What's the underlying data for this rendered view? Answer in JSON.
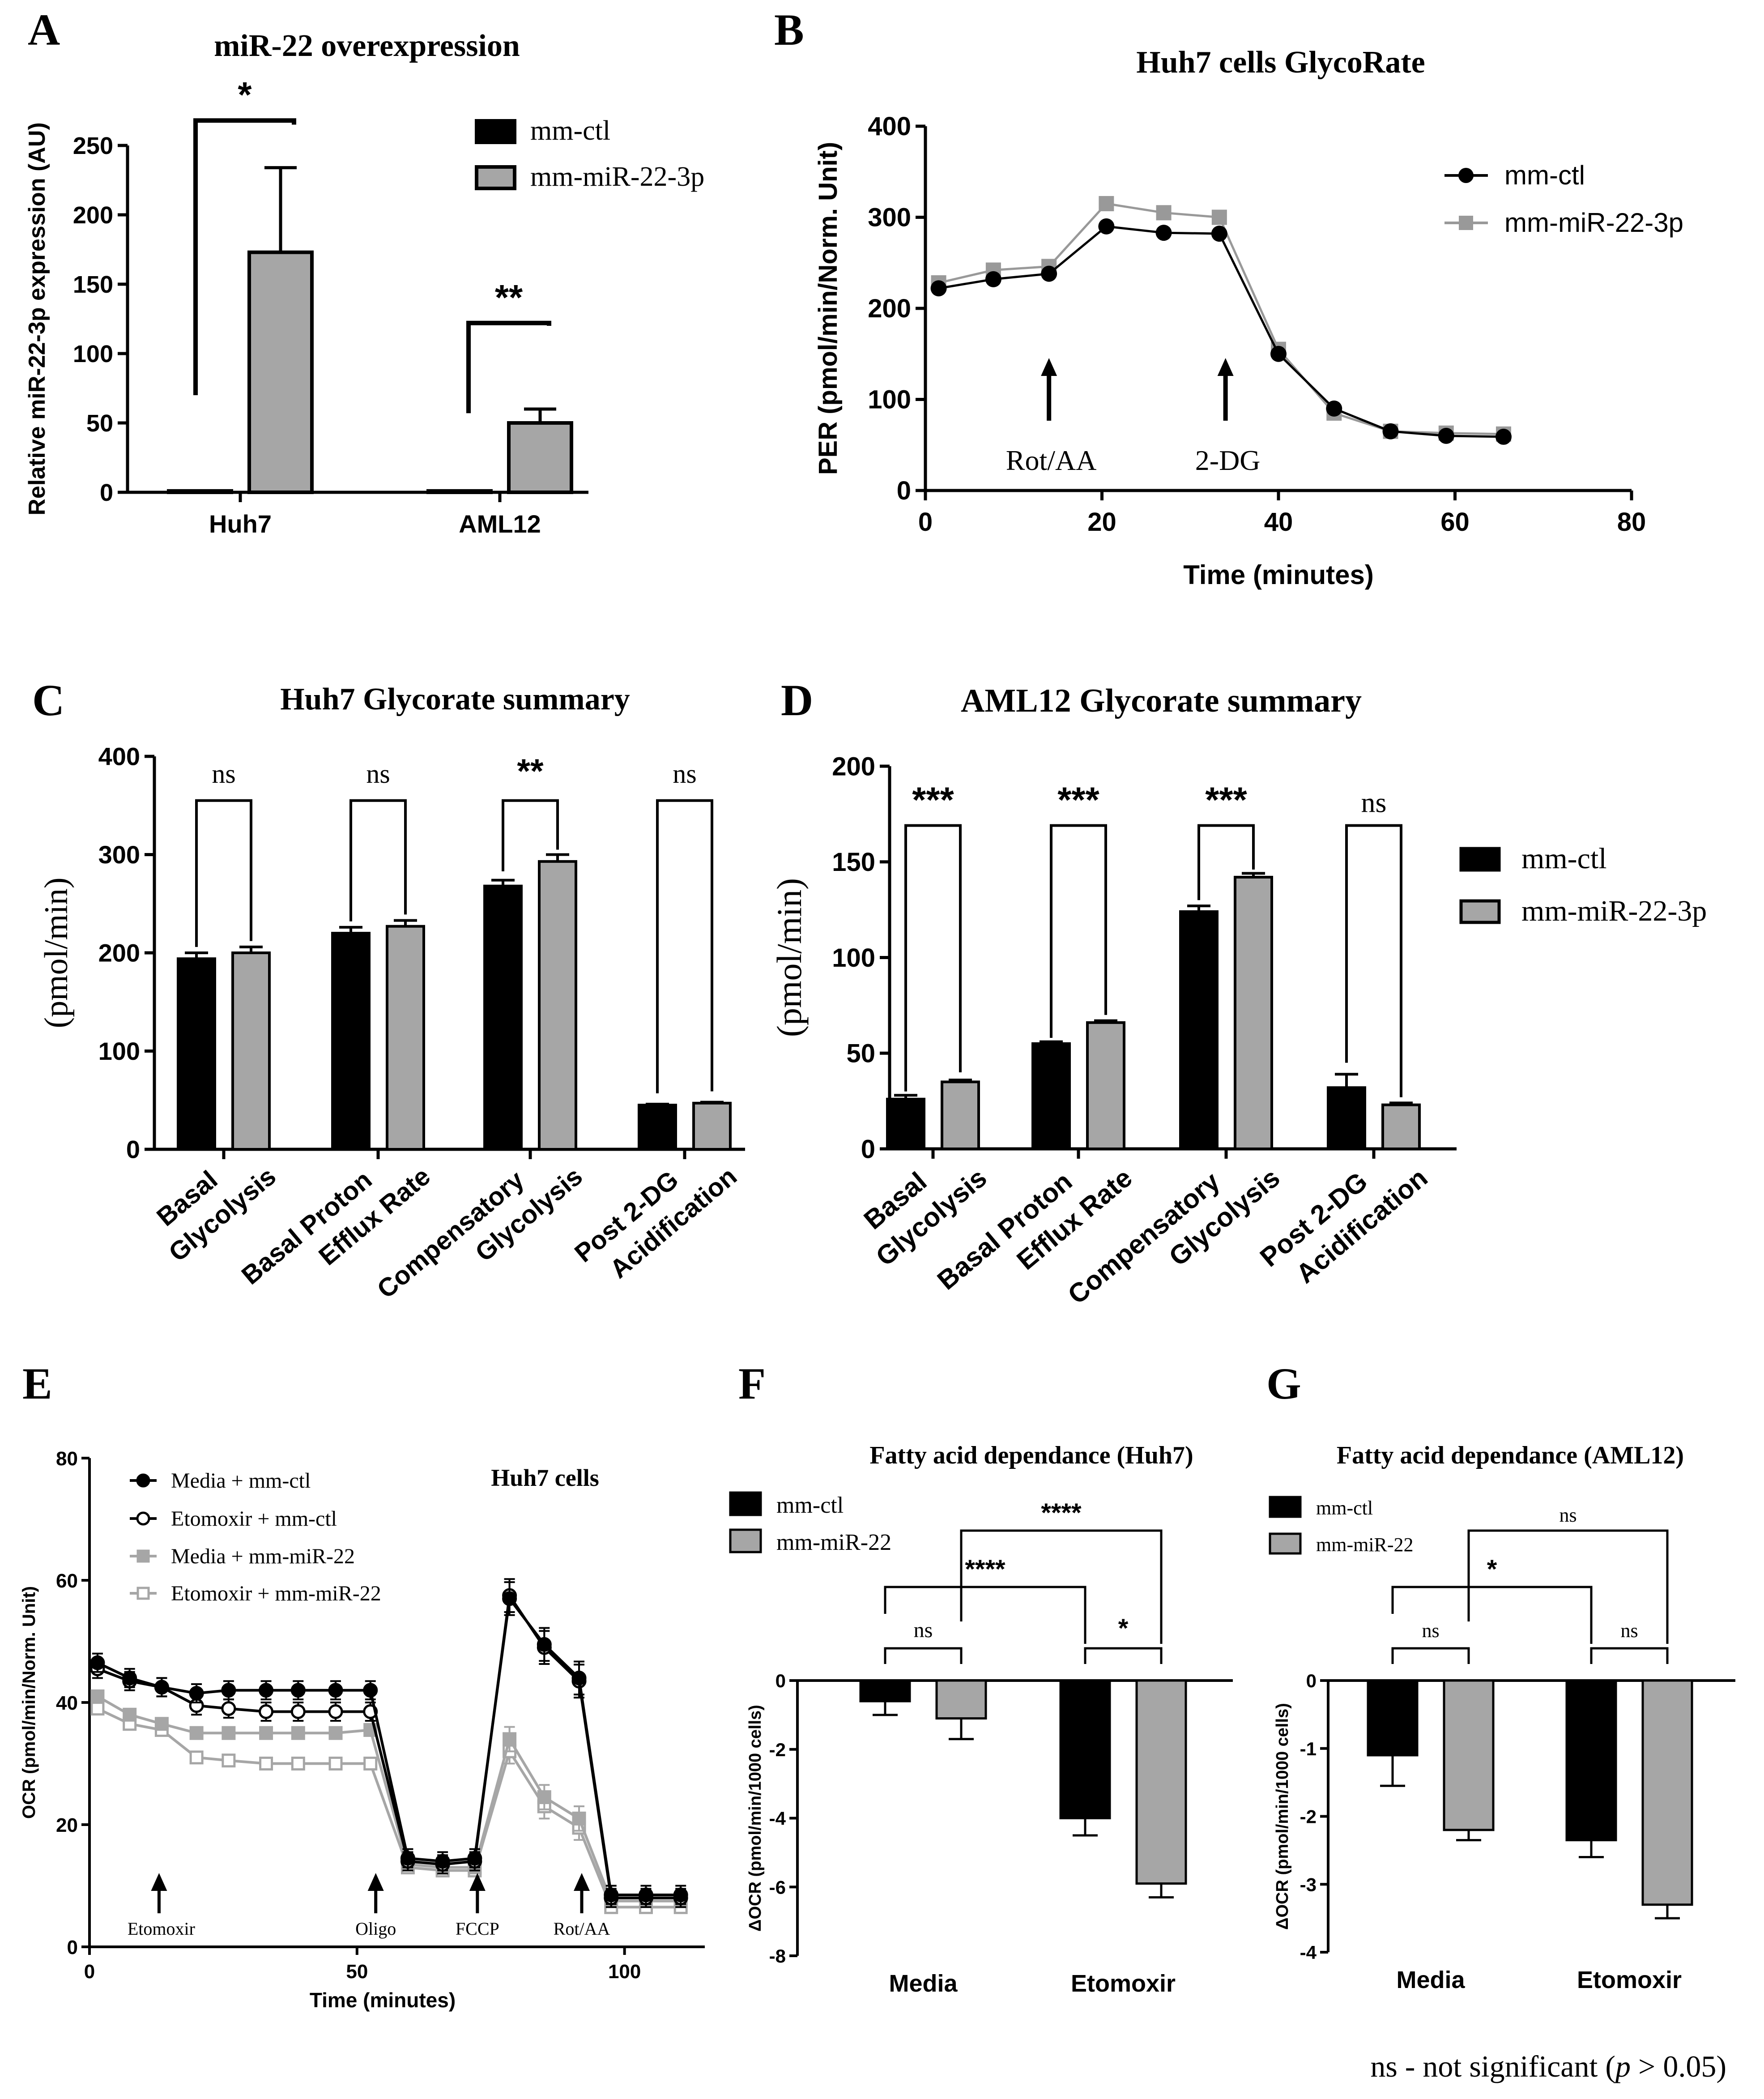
{
  "colors": {
    "ctl": "#000000",
    "mir": "#a6a6a6",
    "mir_line": "#999999",
    "dark": "#000000"
  },
  "chart_data": [
    {
      "panel": "A",
      "type": "bar",
      "title": "miR-22 overexpression",
      "ylabel": "Relative miR-22-3p expression (AU)",
      "categories": [
        "Huh7",
        "AML12"
      ],
      "ylim": [
        0,
        250
      ],
      "yticks": [
        0,
        50,
        100,
        150,
        200,
        250
      ],
      "series": [
        {
          "name": "mm-ctl",
          "values": [
            1,
            1
          ],
          "err": [
            0,
            0
          ]
        },
        {
          "name": "mm-miR-22-3p",
          "values": [
            173,
            50
          ],
          "err": [
            61,
            10
          ]
        }
      ],
      "significance": [
        "*",
        "**"
      ]
    },
    {
      "panel": "B",
      "type": "line",
      "title": "Huh7 cells GlycoRate",
      "xlabel": "Time (minutes)",
      "ylabel": "PER (pmol/min/Norm. Unit)",
      "xlim": [
        0,
        80
      ],
      "ylim": [
        0,
        400
      ],
      "xticks": [
        0,
        20,
        40,
        60,
        80
      ],
      "yticks": [
        0,
        100,
        200,
        300,
        400
      ],
      "x": [
        1.5,
        7.7,
        14,
        20.5,
        27,
        33.3,
        40,
        46.3,
        52.7,
        59,
        65.5
      ],
      "series": [
        {
          "name": "mm-ctl",
          "values": [
            222,
            232,
            238,
            290,
            283,
            282,
            150,
            90,
            65,
            60,
            59
          ]
        },
        {
          "name": "mm-miR-22-3p",
          "values": [
            228,
            242,
            246,
            315,
            305,
            300,
            155,
            85,
            65,
            63,
            62
          ]
        }
      ],
      "annotations": [
        {
          "label": "Rot/AA",
          "x": 14
        },
        {
          "label": "2-DG",
          "x": 34
        }
      ]
    },
    {
      "panel": "C",
      "type": "bar",
      "title": "Huh7 Glycorate summary",
      "ylabel": "(pmol/min)",
      "categories": [
        "Basal Glycolysis",
        "Basal Proton Efflux Rate",
        "Compensatory Glycolysis",
        "Post 2-DG Acidification"
      ],
      "category_lines": [
        [
          "Basal",
          "Glycolysis"
        ],
        [
          "Basal Proton",
          "Efflux Rate"
        ],
        [
          "Compensatory",
          "Glycolysis"
        ],
        [
          "Post 2-DG",
          "Acidification"
        ]
      ],
      "ylim": [
        0,
        400
      ],
      "yticks": [
        0,
        100,
        200,
        300,
        400
      ],
      "series": [
        {
          "name": "mm-ctl",
          "values": [
            194,
            220,
            268,
            45
          ],
          "err": [
            6,
            6,
            6,
            1
          ]
        },
        {
          "name": "mm-miR-22-3p",
          "values": [
            200,
            227,
            293,
            47
          ],
          "err": [
            6,
            6,
            7,
            1
          ]
        }
      ],
      "significance": [
        "ns",
        "ns",
        "**",
        "ns"
      ]
    },
    {
      "panel": "D",
      "type": "bar",
      "title": "AML12 Glycorate summary",
      "ylabel": "(pmol/min)",
      "categories": [
        "Basal Glycolysis",
        "Basal Proton Efflux Rate",
        "Compensatory Glycolysis",
        "Post 2-DG Acidification"
      ],
      "category_lines": [
        [
          "Basal",
          "Glycolysis"
        ],
        [
          "Basal Proton",
          "Efflux Rate"
        ],
        [
          "Compensatory",
          "Glycolysis"
        ],
        [
          "Post 2-DG",
          "Acidification"
        ]
      ],
      "ylim": [
        0,
        200
      ],
      "yticks": [
        0,
        50,
        100,
        150,
        200
      ],
      "series": [
        {
          "name": "mm-ctl",
          "values": [
            26,
            55,
            124,
            32
          ],
          "err": [
            2,
            1,
            3,
            7
          ]
        },
        {
          "name": "mm-miR-22-3p",
          "values": [
            35,
            66,
            142,
            23
          ],
          "err": [
            1,
            1,
            2,
            1
          ]
        }
      ],
      "significance": [
        "***",
        "***",
        "***",
        "ns"
      ]
    },
    {
      "panel": "E",
      "type": "line",
      "title": "Huh7 cells",
      "xlabel": "Time (minutes)",
      "ylabel": "OCR (pmol/min/Norm. Unit)",
      "xlim": [
        0,
        115
      ],
      "ylim": [
        0,
        80
      ],
      "xticks": [
        0,
        50,
        100
      ],
      "yticks": [
        0,
        20,
        40,
        60,
        80
      ],
      "x": [
        1.5,
        7.5,
        13.5,
        20,
        26,
        33,
        39,
        46,
        52.5,
        59.5,
        66,
        72,
        78.5,
        85,
        91.5,
        97.5,
        104,
        110.5
      ],
      "series": [
        {
          "name": "Media + mm-ctl",
          "values": [
            46.5,
            44,
            42.5,
            41.5,
            42,
            42,
            42,
            42,
            42,
            14.5,
            14,
            14.5,
            57,
            49.5,
            44,
            8.5,
            8.5,
            8.5
          ],
          "err": 1.5
        },
        {
          "name": "Etomoxir + mm-ctl",
          "values": [
            45.5,
            43.5,
            42.5,
            39.5,
            39,
            38.5,
            38.5,
            38.5,
            38.5,
            14,
            13.5,
            14,
            57.5,
            49,
            43.5,
            8,
            8,
            8
          ],
          "err": 1.5
        },
        {
          "name": "Media + mm-miR-22",
          "values": [
            41,
            38,
            36.5,
            35,
            35,
            35,
            35,
            35,
            35.5,
            13.5,
            13,
            13,
            34,
            24.5,
            21,
            7.5,
            7.5,
            7.5
          ],
          "err": 0.8
        },
        {
          "name": "Etomoxir +  mm-miR-22",
          "values": [
            39,
            36.5,
            35.5,
            31,
            30.5,
            30,
            30,
            30,
            30,
            13,
            12.5,
            12.5,
            32,
            23,
            19.5,
            6.5,
            6.5,
            6.5
          ],
          "err": 0.8
        }
      ],
      "annotations": [
        {
          "label": "Etomoxir",
          "x": 13
        },
        {
          "label": "Oligo",
          "x": 53.5
        },
        {
          "label": "FCCP",
          "x": 72.5
        },
        {
          "label": "Rot/AA",
          "x": 92
        }
      ]
    },
    {
      "panel": "F",
      "type": "bar",
      "title": "Fatty acid dependance (Huh7)",
      "ylabel": "ΔOCR (pmol/min/1000 cells)",
      "categories": [
        "Media",
        "Etomoxir"
      ],
      "ylim": [
        -8,
        0
      ],
      "yticks": [
        0,
        -2,
        -4,
        -6,
        -8
      ],
      "series": [
        {
          "name": "mm-ctl",
          "values": [
            -0.6,
            -4.0
          ],
          "err": [
            0.4,
            0.5
          ]
        },
        {
          "name": "mm-miR-22",
          "values": [
            -1.1,
            -5.9
          ],
          "err": [
            0.6,
            0.4
          ]
        }
      ],
      "significance": [
        {
          "label": "ns"
        },
        {
          "label": "*"
        },
        {
          "label": "****"
        },
        {
          "label": "****"
        }
      ]
    },
    {
      "panel": "G",
      "type": "bar",
      "title": "Fatty acid dependance (AML12)",
      "ylabel": "ΔOCR (pmol/min/1000 cells)",
      "categories": [
        "Media",
        "Etomoxir"
      ],
      "ylim": [
        -4,
        0
      ],
      "yticks": [
        0,
        -1,
        -2,
        -3,
        -4
      ],
      "series": [
        {
          "name": "mm-ctl",
          "values": [
            -1.1,
            -2.35
          ],
          "err": [
            0.45,
            0.25
          ]
        },
        {
          "name": "mm-miR-22",
          "values": [
            -2.2,
            -3.3
          ],
          "err": [
            0.15,
            0.2
          ]
        }
      ],
      "significance": [
        {
          "label": "ns"
        },
        {
          "label": "ns"
        },
        {
          "label": "*"
        },
        {
          "label": "ns"
        }
      ]
    }
  ],
  "footnote": {
    "lead": "ns - not significant (",
    "p": "p",
    "tail": " > 0.05)"
  }
}
